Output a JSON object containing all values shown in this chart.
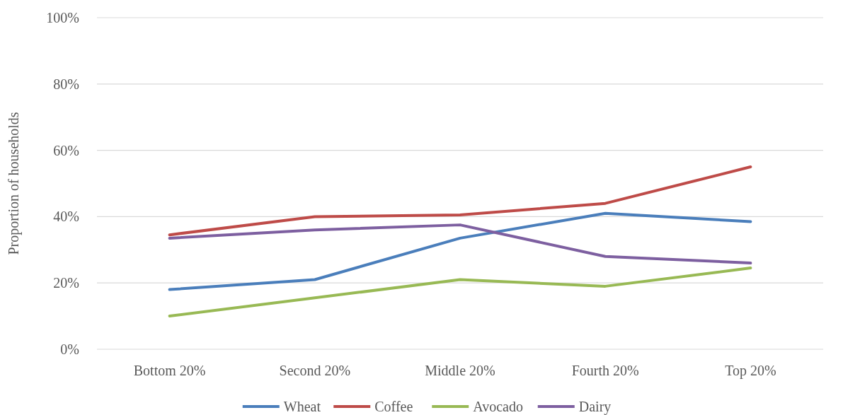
{
  "chart_data": {
    "type": "line",
    "ylabel": "Proportion of households",
    "categories": [
      "Bottom 20%",
      "Second 20%",
      "Middle 20%",
      "Fourth 20%",
      "Top 20%"
    ],
    "series": [
      {
        "name": "Wheat",
        "color": "#4a7ebb",
        "values": [
          18,
          21,
          33.5,
          41,
          38.5
        ]
      },
      {
        "name": "Coffee",
        "color": "#be4b48",
        "values": [
          34.5,
          40,
          40.5,
          44,
          55
        ]
      },
      {
        "name": "Avocado",
        "color": "#98b954",
        "values": [
          10,
          15.5,
          21,
          19,
          24.5
        ]
      },
      {
        "name": "Dairy",
        "color": "#7d5fa0",
        "values": [
          33.5,
          36,
          37.5,
          28,
          26
        ]
      }
    ],
    "ylim": [
      0,
      100
    ],
    "yticks": [
      {
        "value": 0,
        "label": "0%"
      },
      {
        "value": 20,
        "label": "20%"
      },
      {
        "value": 40,
        "label": "40%"
      },
      {
        "value": 60,
        "label": "60%"
      },
      {
        "value": 80,
        "label": "80%"
      },
      {
        "value": 100,
        "label": "100%"
      }
    ],
    "grid": "y",
    "legend": "bottom",
    "marker": "none",
    "line_style": "solid"
  }
}
